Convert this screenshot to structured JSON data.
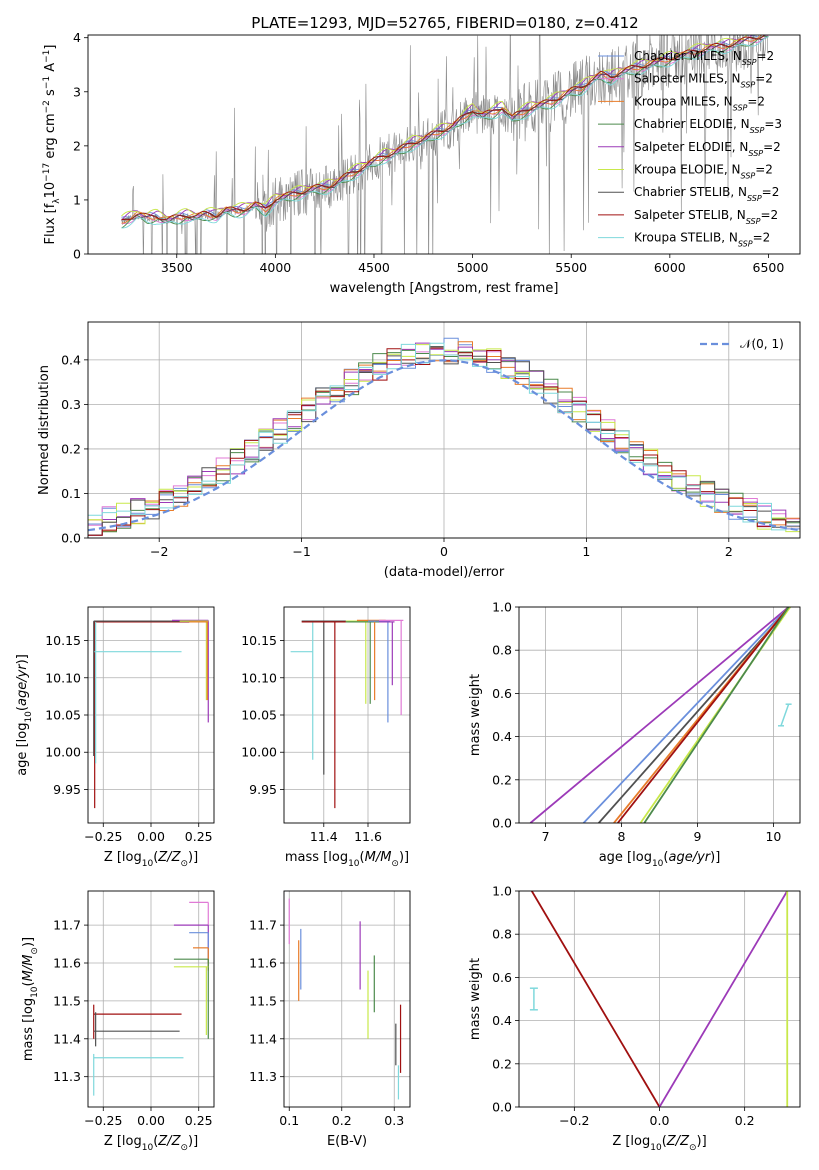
{
  "figure": {
    "title": "PLATE=1293, MJD=52765, FIBERID=0180, z=0.412"
  },
  "colors": {
    "series": [
      "#6a8fdc",
      "#e07ad6",
      "#e87c2a",
      "#4c8a4c",
      "#9c3ab8",
      "#c8e84a",
      "#505050",
      "#a01010",
      "#7fd8dc"
    ],
    "data_spectrum": "#888888",
    "normal_curve": "#6a8fdc",
    "grid": "#b0b0b0"
  },
  "legend": [
    "Chabrier MILES, N_SSP=2",
    "Salpeter MILES, N_SSP=2",
    "Kroupa MILES, N_SSP=2",
    "Chabrier ELODIE, N_SSP=3",
    "Salpeter ELODIE, N_SSP=2",
    "Kroupa ELODIE, N_SSP=2",
    "Chabrier STELIB, N_SSP=2",
    "Salpeter STELIB, N_SSP=2",
    "Kroupa STELIB, N_SSP=2"
  ],
  "chart_data": [
    {
      "id": "spectrum",
      "type": "line",
      "xlabel": "wavelength [Angstrom, rest frame]",
      "ylabel": "Flux [f_λ10^-17 erg cm^-2 s^-1 A^-1]",
      "xlim": [
        3050,
        6660
      ],
      "ylim": [
        0,
        4.05
      ],
      "xticks": [
        "3500",
        "4000",
        "4500",
        "5000",
        "5500",
        "6000",
        "6500"
      ],
      "yticks": [
        "0",
        "1",
        "2",
        "3",
        "4"
      ],
      "model_x": [
        3220,
        3260,
        3300,
        3350,
        3400,
        3450,
        3500,
        3550,
        3600,
        3650,
        3700,
        3750,
        3800,
        3850,
        3900,
        3950,
        4000,
        4050,
        4100,
        4150,
        4200,
        4250,
        4300,
        4350,
        4400,
        4450,
        4500,
        4550,
        4600,
        4650,
        4700,
        4750,
        4800,
        4850,
        4900,
        4950,
        5000,
        5050,
        5100,
        5150,
        5200,
        5250,
        5300,
        5350,
        5400,
        5450,
        5500,
        5550,
        5600,
        5650,
        5700,
        5750,
        5800,
        5850,
        5900,
        5950,
        6000,
        6050,
        6100,
        6150,
        6200,
        6250,
        6300,
        6350,
        6400,
        6450,
        6500
      ],
      "model_y": [
        0.58,
        0.65,
        0.72,
        0.66,
        0.68,
        0.62,
        0.65,
        0.7,
        0.68,
        0.72,
        0.7,
        0.8,
        0.78,
        0.82,
        0.9,
        0.8,
        1.0,
        1.05,
        1.1,
        1.15,
        1.2,
        1.22,
        1.28,
        1.4,
        1.5,
        1.6,
        1.7,
        1.8,
        1.85,
        1.95,
        2.05,
        2.1,
        2.2,
        2.28,
        2.35,
        2.5,
        2.65,
        2.55,
        2.6,
        2.7,
        2.5,
        2.6,
        2.7,
        2.75,
        2.8,
        2.9,
        3.0,
        3.05,
        3.2,
        3.3,
        3.25,
        3.35,
        3.4,
        3.45,
        3.5,
        3.55,
        3.6,
        3.65,
        3.7,
        3.75,
        3.8,
        3.82,
        3.85,
        3.9,
        3.95,
        4.0,
        4.05
      ],
      "model_offsets": [
        0.05,
        -0.03,
        0.02,
        -0.05,
        0.07,
        0.1,
        0.0,
        0.03,
        -0.08
      ],
      "data_spectrum": "noisy observed flux from 3220 to 6500 Å following the model continuum"
    },
    {
      "id": "residual_histograms",
      "type": "line",
      "xlabel": "(data-model)/error",
      "ylabel": "Normed distribution",
      "xlim": [
        -2.5,
        2.5
      ],
      "ylim": [
        0,
        0.485
      ],
      "xticks": [
        "−2",
        "−1",
        "0",
        "1",
        "2"
      ],
      "yticks": [
        "0.0",
        "0.1",
        "0.2",
        "0.3",
        "0.4"
      ],
      "bin_width": 0.1,
      "gaussian_mean": 0,
      "gaussian_sigma": 1,
      "gaussian_label": "𝒩(0, 1)",
      "hist_shape": "step histograms, one per model, roughly Gaussian peaking near 0.40–0.46 around x = 0"
    },
    {
      "id": "age_vs_Z",
      "type": "scatter",
      "xlabel": "Z [log10(Z/Z⊙)]",
      "ylabel": "age [log10(age/yr)]",
      "xlim": [
        -0.33,
        0.33
      ],
      "ylim": [
        9.905,
        10.195
      ],
      "xticks": [
        "−0.25",
        "0.00",
        "0.25"
      ],
      "yticks": [
        "9.95",
        "10.00",
        "10.05",
        "10.10",
        "10.15"
      ],
      "segments": [
        {
          "s": 7,
          "h": [
            -0.3,
            0.29
          ],
          "y": 10.175,
          "v": [
            9.925,
            10.175
          ],
          "x": -0.295
        },
        {
          "s": 8,
          "h": [
            -0.3,
            0.16
          ],
          "y": 10.135,
          "v": [
            9.985,
            10.175
          ],
          "x": -0.29
        },
        {
          "s": 6,
          "h": [
            -0.3,
            0.29
          ],
          "y": 10.176,
          "v": [
            9.995,
            10.176
          ],
          "x": -0.3
        },
        {
          "s": 4,
          "h": [
            0.11,
            0.3
          ],
          "y": 10.177,
          "v": [
            10.04,
            10.177
          ],
          "x": 0.3
        },
        {
          "s": 5,
          "h": [
            0.15,
            0.3
          ],
          "y": 10.176,
          "v": [
            10.07,
            10.176
          ],
          "x": 0.29
        },
        {
          "s": 2,
          "h": [
            0.2,
            0.3
          ],
          "y": 10.175,
          "v": [
            10.07,
            10.175
          ],
          "x": 0.295
        }
      ]
    },
    {
      "id": "age_vs_mass",
      "type": "scatter",
      "xlabel": "mass [log10(M/M⊙)]",
      "ylabel": "",
      "xlim": [
        11.22,
        11.79
      ],
      "ylim": [
        9.905,
        10.195
      ],
      "xticks": [
        "11.4",
        "11.6"
      ],
      "yticks": [
        "9.95",
        "10.00",
        "10.05",
        "10.10",
        "10.15"
      ],
      "segments": [
        {
          "s": 8,
          "h": [
            11.25,
            11.35
          ],
          "y": 10.135,
          "v": [
            9.99,
            10.175
          ],
          "x": 11.35
        },
        {
          "s": 6,
          "h": [
            11.3,
            11.5
          ],
          "y": 10.176,
          "v": [
            9.97,
            10.176
          ],
          "x": 11.4
        },
        {
          "s": 7,
          "h": [
            11.3,
            11.5
          ],
          "y": 10.175,
          "v": [
            9.925,
            10.175
          ],
          "x": 11.45
        },
        {
          "s": 5,
          "h": [
            11.5,
            11.7
          ],
          "y": 10.176,
          "v": [
            10.065,
            10.176
          ],
          "x": 11.59
        },
        {
          "s": 3,
          "h": [
            11.5,
            11.68
          ],
          "y": 10.175,
          "v": [
            10.065,
            10.175
          ],
          "x": 11.61
        },
        {
          "s": 2,
          "h": [
            11.55,
            11.68
          ],
          "y": 10.177,
          "v": [
            10.07,
            10.177
          ],
          "x": 11.63
        },
        {
          "s": 0,
          "h": [
            11.6,
            11.7
          ],
          "y": 10.176,
          "v": [
            10.04,
            10.176
          ],
          "x": 11.69
        },
        {
          "s": 4,
          "h": [
            11.65,
            11.72
          ],
          "y": 10.175,
          "v": [
            10.09,
            10.175
          ],
          "x": 11.71
        },
        {
          "s": 1,
          "h": [
            11.65,
            11.76
          ],
          "y": 10.177,
          "v": [
            10.05,
            10.177
          ],
          "x": 11.75
        }
      ]
    },
    {
      "id": "mass_weight_vs_age",
      "type": "line",
      "xlabel": "age [log10(age/yr)]",
      "ylabel": "mass weight",
      "xlim": [
        6.65,
        10.35
      ],
      "ylim": [
        0,
        1
      ],
      "xticks": [
        "7",
        "8",
        "9",
        "10"
      ],
      "yticks": [
        "0.0",
        "0.2",
        "0.4",
        "0.6",
        "0.8",
        "1.0"
      ],
      "lines": [
        {
          "s": 4,
          "x0": 6.8,
          "x1": 10.2
        },
        {
          "s": 0,
          "x0": 7.5,
          "x1": 10.2
        },
        {
          "s": 6,
          "x0": 7.7,
          "x1": 10.22
        },
        {
          "s": 2,
          "x0": 7.9,
          "x1": 10.2
        },
        {
          "s": 7,
          "x0": 7.95,
          "x1": 10.2
        },
        {
          "s": 5,
          "x0": 8.25,
          "x1": 10.22
        },
        {
          "s": 3,
          "x0": 8.3,
          "x1": 10.2
        }
      ],
      "errorbar": {
        "x": [
          10.1,
          10.2
        ],
        "y": [
          0.45,
          0.55
        ]
      }
    },
    {
      "id": "mass_vs_Z",
      "type": "scatter",
      "xlabel": "Z [log10(Z/Z⊙)]",
      "ylabel": "mass [log10(M/M⊙)]",
      "xlim": [
        -0.33,
        0.33
      ],
      "ylim": [
        11.22,
        11.79
      ],
      "xticks": [
        "−0.25",
        "0.00",
        "0.25"
      ],
      "yticks": [
        "11.3",
        "11.4",
        "11.5",
        "11.6",
        "11.7"
      ],
      "segments": [
        {
          "s": 7,
          "h": [
            -0.3,
            0.16
          ],
          "y": 11.465,
          "v": [
            11.4,
            11.49
          ],
          "x": -0.3
        },
        {
          "s": 6,
          "h": [
            -0.3,
            0.15
          ],
          "y": 11.42,
          "v": [
            11.38,
            11.47
          ],
          "x": -0.29
        },
        {
          "s": 8,
          "h": [
            -0.3,
            0.17
          ],
          "y": 11.35,
          "v": [
            11.25,
            11.36
          ],
          "x": -0.3
        },
        {
          "s": 1,
          "h": [
            0.2,
            0.3
          ],
          "y": 11.76,
          "v": [
            11.7,
            11.76
          ],
          "x": 0.3
        },
        {
          "s": 4,
          "h": [
            0.12,
            0.3
          ],
          "y": 11.7,
          "v": [
            11.6,
            11.7
          ],
          "x": 0.3
        },
        {
          "s": 0,
          "h": [
            0.2,
            0.3
          ],
          "y": 11.68,
          "v": [
            11.6,
            11.68
          ],
          "x": 0.3
        },
        {
          "s": 2,
          "h": [
            0.22,
            0.3
          ],
          "y": 11.64,
          "v": [
            11.58,
            11.64
          ],
          "x": 0.3
        },
        {
          "s": 3,
          "h": [
            0.12,
            0.3
          ],
          "y": 11.61,
          "v": [
            11.4,
            11.61
          ],
          "x": 0.3
        },
        {
          "s": 5,
          "h": [
            0.12,
            0.3
          ],
          "y": 11.59,
          "v": [
            11.41,
            11.59
          ],
          "x": 0.29
        }
      ]
    },
    {
      "id": "mass_vs_EBV",
      "type": "scatter",
      "xlabel": "E(B-V)",
      "ylabel": "",
      "xlim": [
        0.09,
        0.33
      ],
      "ylim": [
        11.22,
        11.79
      ],
      "xticks": [
        "0.1",
        "0.2",
        "0.3"
      ],
      "yticks": [
        "11.3",
        "11.4",
        "11.5",
        "11.6",
        "11.7"
      ],
      "errorbars": [
        {
          "s": 1,
          "x": 0.1,
          "y": [
            11.65,
            11.77
          ]
        },
        {
          "s": 2,
          "x": 0.118,
          "y": [
            11.5,
            11.66
          ]
        },
        {
          "s": 0,
          "x": 0.122,
          "y": [
            11.53,
            11.69
          ]
        },
        {
          "s": 4,
          "x": 0.235,
          "y": [
            11.53,
            11.71
          ]
        },
        {
          "s": 5,
          "x": 0.25,
          "y": [
            11.4,
            11.58
          ]
        },
        {
          "s": 3,
          "x": 0.262,
          "y": [
            11.47,
            11.62
          ]
        },
        {
          "s": 6,
          "x": 0.303,
          "y": [
            11.33,
            11.44
          ]
        },
        {
          "s": 8,
          "x": 0.308,
          "y": [
            11.24,
            11.33
          ]
        },
        {
          "s": 7,
          "x": 0.312,
          "y": [
            11.31,
            11.49
          ]
        }
      ]
    },
    {
      "id": "mass_weight_vs_Z",
      "type": "line",
      "xlabel": "Z [log10(Z/Z⊙)]",
      "ylabel": "mass weight",
      "xlim": [
        -0.33,
        0.33
      ],
      "ylim": [
        0,
        1
      ],
      "xticks": [
        "−0.2",
        "0.0",
        "0.2"
      ],
      "yticks": [
        "0.0",
        "0.2",
        "0.4",
        "0.6",
        "0.8",
        "1.0"
      ],
      "lines": [
        {
          "s": 7,
          "x": [
            -0.3,
            0.0
          ],
          "y": [
            1.0,
            0.0
          ]
        },
        {
          "s": 4,
          "x": [
            0.0,
            0.3
          ],
          "y": [
            0.0,
            1.0
          ]
        },
        {
          "s": 5,
          "x": [
            0.3,
            0.3
          ],
          "y": [
            0.0,
            1.0
          ]
        }
      ],
      "errorbar": {
        "x": -0.295,
        "y": [
          0.45,
          0.55
        ]
      }
    }
  ]
}
